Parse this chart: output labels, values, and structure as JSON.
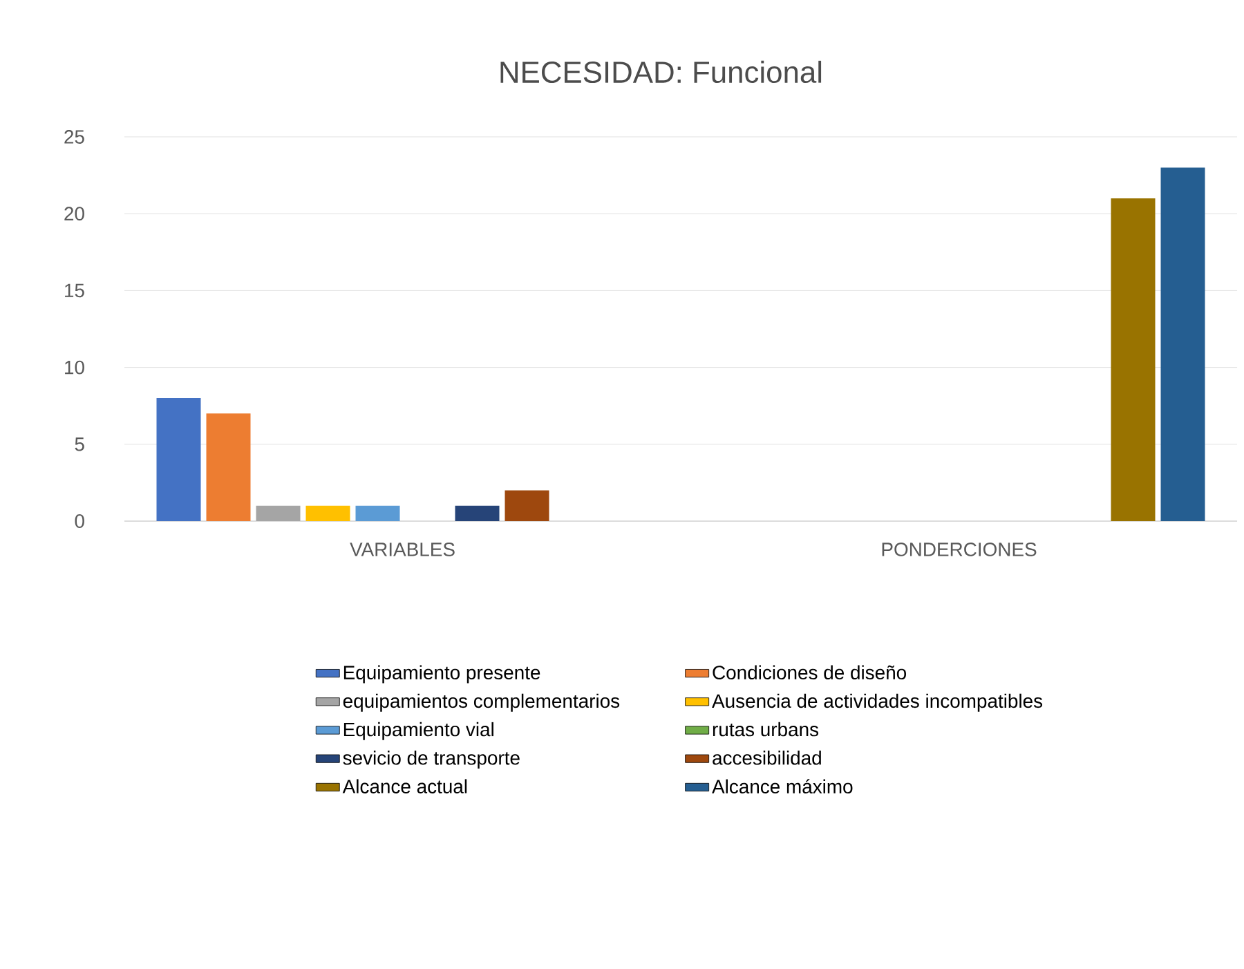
{
  "chart_data": {
    "type": "bar",
    "title": "NECESIDAD: Funcional",
    "categories": [
      "VARIABLES",
      "PONDERCIONES"
    ],
    "series": [
      {
        "name": "Equipamiento presente",
        "color": "#4472c4",
        "values": [
          8,
          null
        ]
      },
      {
        "name": "Condiciones de diseño",
        "color": "#ed7d31",
        "values": [
          7,
          null
        ]
      },
      {
        "name": "equipamientos complementarios",
        "color": "#a5a5a5",
        "values": [
          1,
          null
        ]
      },
      {
        "name": "Ausencia de actividades incompatibles",
        "color": "#ffc000",
        "values": [
          1,
          null
        ]
      },
      {
        "name": "Equipamiento vial",
        "color": "#5b9bd5",
        "values": [
          1,
          null
        ]
      },
      {
        "name": "rutas urbans",
        "color": "#70ad47",
        "values": [
          0,
          null
        ]
      },
      {
        "name": "sevicio de transporte",
        "color": "#264478",
        "values": [
          1,
          null
        ]
      },
      {
        "name": "accesibilidad",
        "color": "#9e480e",
        "values": [
          2,
          null
        ]
      },
      {
        "name": "Alcance actual",
        "color": "#997300",
        "values": [
          null,
          21
        ]
      },
      {
        "name": "Alcance máximo",
        "color": "#255e91",
        "values": [
          null,
          23
        ]
      }
    ],
    "ylim": [
      0,
      25
    ],
    "yticks": [
      0,
      5,
      10,
      15,
      20,
      25
    ],
    "grid": "y",
    "legend": "bottom"
  }
}
